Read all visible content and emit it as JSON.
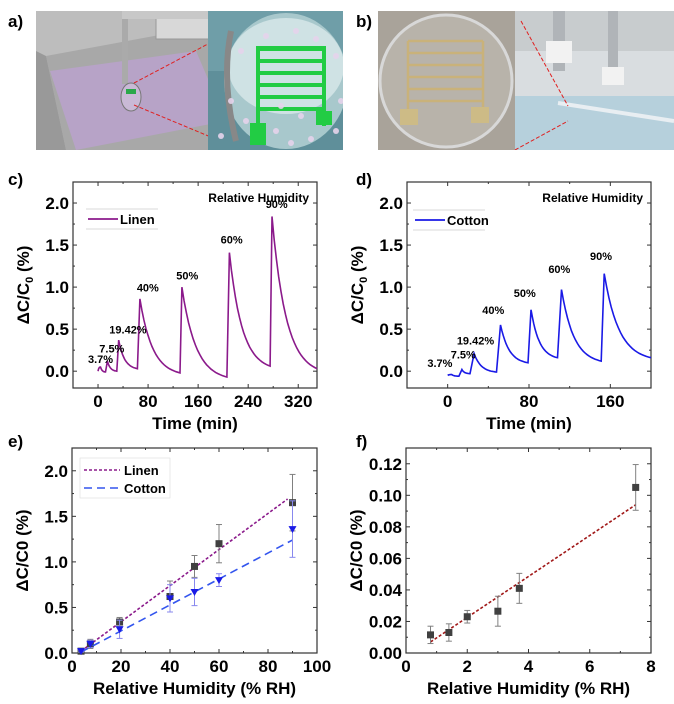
{
  "panels": {
    "a": {
      "label": "a)",
      "description": "3D render of printing setup with purple fabric bath and zoomed sensor with green interdigitated electrode among spheres"
    },
    "b": {
      "label": "b)",
      "description": "Photo of embroidered interdigitated sensor on fabric in petri dish and photo of printing/test rig"
    },
    "c": {
      "label": "c)"
    },
    "d": {
      "label": "d)"
    },
    "e": {
      "label": "e)"
    },
    "f": {
      "label": "f)"
    }
  },
  "colors": {
    "linen": "#8b1a8b",
    "cotton": "#1a1ae6",
    "cotton_fit": "#3355ee",
    "fit_f": "#a01818",
    "marker": "#404040",
    "errorbar": "#808080",
    "cotton_errorbar": "#8888ee"
  },
  "chart_data": [
    {
      "id": "c",
      "type": "line",
      "title": "",
      "annotation_title": "Relative Humidity",
      "xlabel": "Time (min)",
      "ylabel": "ΔC/C",
      "ylabel_sub": "0",
      "ylabel_suffix": " (%)",
      "xlim": [
        -40,
        350
      ],
      "ylim": [
        -0.2,
        2.25
      ],
      "xticks": [
        0,
        80,
        160,
        240,
        320
      ],
      "xtick_labels": [
        "0",
        "80",
        "160",
        "240",
        "320"
      ],
      "yticks": [
        0.0,
        0.5,
        1.0,
        1.5,
        2.0
      ],
      "ytick_labels": [
        "0.0",
        "0.5",
        "1.0",
        "1.5",
        "2.0"
      ],
      "legend": {
        "entries": [
          "Linen"
        ],
        "position": "top-left"
      },
      "series": [
        {
          "name": "Linen",
          "x": [
            0,
            4,
            12,
            15,
            30,
            33,
            63,
            67,
            131,
            134,
            206,
            210,
            275,
            278,
            350
          ],
          "y": [
            0.0,
            0.05,
            -0.01,
            0.12,
            0.0,
            0.37,
            0.03,
            0.86,
            -0.02,
            1.0,
            -0.07,
            1.41,
            0.06,
            1.84,
            0.03
          ]
        }
      ],
      "annotations": [
        {
          "text": "3.7%",
          "x": -16,
          "y": 0.1
        },
        {
          "text": "7.5%",
          "x": 2,
          "y": 0.22
        },
        {
          "text": "19.42%",
          "x": 18,
          "y": 0.45
        },
        {
          "text": "40%",
          "x": 62,
          "y": 0.95
        },
        {
          "text": "50%",
          "x": 125,
          "y": 1.09
        },
        {
          "text": "60%",
          "x": 196,
          "y": 1.52
        },
        {
          "text": "90%",
          "x": 268,
          "y": 1.94
        }
      ]
    },
    {
      "id": "d",
      "type": "line",
      "title": "",
      "annotation_title": "Relative Humidity",
      "xlabel": "Time (min)",
      "ylabel": "ΔC/C",
      "ylabel_sub": "0",
      "ylabel_suffix": " (%)",
      "xlim": [
        -40,
        200
      ],
      "ylim": [
        -0.2,
        2.25
      ],
      "xticks": [
        0,
        80,
        160
      ],
      "xtick_labels": [
        "0",
        "80",
        "160"
      ],
      "yticks": [
        0.0,
        0.5,
        1.0,
        1.5,
        2.0
      ],
      "ytick_labels": [
        "0.0",
        "0.5",
        "1.0",
        "1.5",
        "2.0"
      ],
      "legend": {
        "entries": [
          "Cotton"
        ],
        "position": "top-left"
      },
      "series": [
        {
          "name": "Cotton",
          "x": [
            0,
            4,
            11,
            14,
            22,
            26,
            48,
            52,
            79,
            82,
            108,
            112,
            151,
            154,
            200
          ],
          "y": [
            -0.05,
            -0.04,
            -0.06,
            0.02,
            -0.03,
            0.21,
            -0.01,
            0.55,
            0.1,
            0.73,
            0.16,
            0.97,
            0.12,
            1.16,
            0.16
          ]
        }
      ],
      "annotations": [
        {
          "text": "3.7%",
          "x": -20,
          "y": 0.05
        },
        {
          "text": "7.5%",
          "x": 3,
          "y": 0.15
        },
        {
          "text": "19.42%",
          "x": 9,
          "y": 0.32
        },
        {
          "text": "40%",
          "x": 34,
          "y": 0.68
        },
        {
          "text": "50%",
          "x": 65,
          "y": 0.88
        },
        {
          "text": "60%",
          "x": 99,
          "y": 1.17
        },
        {
          "text": "90%",
          "x": 140,
          "y": 1.32
        }
      ]
    },
    {
      "id": "e",
      "type": "scatter",
      "title": "",
      "xlabel": "Relative Humidity (% RH)",
      "ylabel": "ΔC/C0 (%)",
      "xlim": [
        0,
        100
      ],
      "ylim": [
        0,
        2.25
      ],
      "xticks": [
        0,
        20,
        40,
        60,
        80,
        100
      ],
      "xtick_labels": [
        "0",
        "20",
        "40",
        "60",
        "80",
        "100"
      ],
      "yticks": [
        0.0,
        0.5,
        1.0,
        1.5,
        2.0
      ],
      "ytick_labels": [
        "0.0",
        "0.5",
        "1.0",
        "1.5",
        "2.0"
      ],
      "legend": {
        "entries": [
          "Linen",
          "Cotton"
        ],
        "position": "top-left"
      },
      "series": [
        {
          "name": "Linen",
          "marker": "square",
          "x": [
            3.7,
            7.5,
            19.42,
            40,
            50,
            60,
            90
          ],
          "y": [
            0.02,
            0.1,
            0.34,
            0.62,
            0.95,
            1.2,
            1.65
          ],
          "err": [
            0.01,
            0.05,
            0.05,
            0.17,
            0.12,
            0.21,
            0.31
          ],
          "fit": {
            "x": [
              3.7,
              88
            ],
            "y": [
              0.02,
              1.69
            ]
          }
        },
        {
          "name": "Cotton",
          "marker": "triangle-down",
          "x": [
            3.7,
            7.5,
            19.42,
            40,
            50,
            60,
            90
          ],
          "y": [
            0.02,
            0.1,
            0.26,
            0.6,
            0.67,
            0.8,
            1.36
          ],
          "err": [
            0.01,
            0.04,
            0.1,
            0.15,
            0.15,
            0.07,
            0.31
          ],
          "fit": {
            "x": [
              3.7,
              90
            ],
            "y": [
              0.01,
              1.24
            ]
          }
        }
      ]
    },
    {
      "id": "f",
      "type": "scatter",
      "title": "",
      "xlabel": "Relative Humidity (% RH)",
      "ylabel": "ΔC/C0 (%)",
      "xlim": [
        0,
        8
      ],
      "ylim": [
        0,
        0.13
      ],
      "xticks": [
        0,
        2,
        4,
        6,
        8
      ],
      "xtick_labels": [
        "0",
        "2",
        "4",
        "6",
        "8"
      ],
      "yticks": [
        0.0,
        0.02,
        0.04,
        0.06,
        0.08,
        0.1,
        0.12
      ],
      "ytick_labels": [
        "0.00",
        "0.02",
        "0.04",
        "0.06",
        "0.08",
        "0.10",
        "0.12"
      ],
      "series": [
        {
          "name": "Linen",
          "marker": "square",
          "x": [
            0.8,
            1.4,
            2.0,
            3.0,
            3.7,
            7.5
          ],
          "y": [
            0.0115,
            0.013,
            0.023,
            0.0265,
            0.041,
            0.105
          ],
          "err": [
            0.0055,
            0.0055,
            0.004,
            0.0095,
            0.0095,
            0.0145
          ],
          "fit": {
            "x": [
              0.8,
              7.5
            ],
            "y": [
              0.007,
              0.094
            ]
          }
        }
      ]
    }
  ]
}
